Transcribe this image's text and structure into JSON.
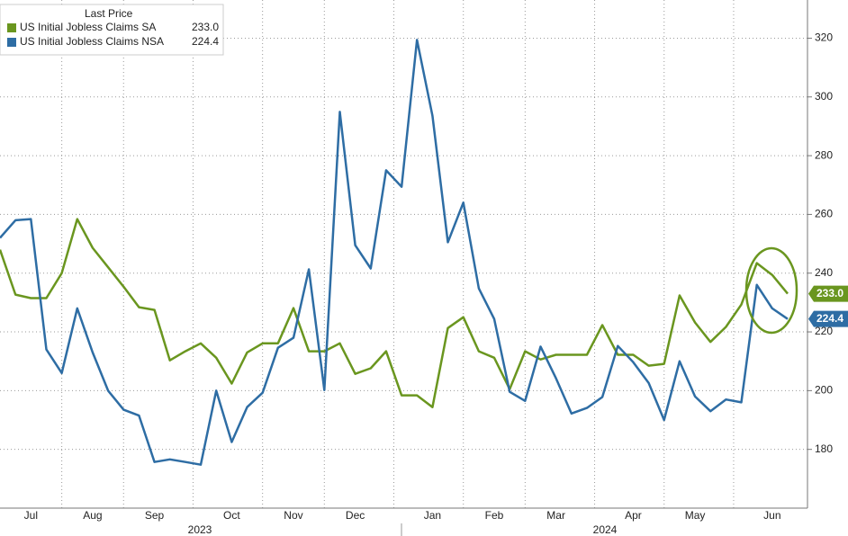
{
  "chart_data": {
    "type": "line",
    "legend_title": "Last Price",
    "categories": [
      null,
      null,
      "Jul",
      null,
      null,
      null,
      "Aug",
      null,
      null,
      null,
      "Sep",
      null,
      null,
      null,
      null,
      "Oct",
      null,
      null,
      null,
      "Nov",
      null,
      null,
      null,
      "Dec",
      null,
      null,
      null,
      null,
      "Jan",
      null,
      null,
      null,
      "Feb",
      null,
      null,
      null,
      "Mar",
      null,
      null,
      null,
      null,
      "Apr",
      null,
      null,
      null,
      "May",
      null,
      null,
      null,
      null,
      "Jun",
      null
    ],
    "x_group_labels": [
      "2023",
      "2024"
    ],
    "series": [
      {
        "name": "US Initial Jobless Claims SA",
        "color": "#6a961f",
        "last_label": "233.0",
        "values": [
          248,
          232.7,
          231.5,
          231.5,
          240,
          258.4,
          248.6,
          242,
          235.4,
          228.4,
          227.5,
          210.3,
          213.4,
          216.1,
          211.2,
          202.4,
          213,
          216.1,
          216.1,
          228.1,
          213.4,
          213.4,
          216.1,
          205.7,
          207.6,
          213.4,
          198.4,
          198.4,
          194.4,
          221.3,
          225,
          213.4,
          211.2,
          200.5,
          213.4,
          210.6,
          212.2,
          212.2,
          212.2,
          222.3,
          212.2,
          212.2,
          208.5,
          209.1,
          232.4,
          223.2,
          216.6,
          221.7,
          229.3,
          243.4,
          239.4,
          233.0
        ]
      },
      {
        "name": "US Initial Jobless Claims NSA",
        "color": "#2e6da4",
        "last_label": "224.4",
        "values": [
          252,
          258,
          258.4,
          214,
          206,
          228,
          213,
          200,
          193.5,
          191.5,
          175.7,
          176.6,
          175.7,
          174.8,
          200,
          182.5,
          194.4,
          199.3,
          214.6,
          218,
          241.3,
          200.2,
          294.9,
          249.5,
          241.6,
          275,
          269.4,
          319.4,
          293.6,
          250.5,
          264,
          234.8,
          224.4,
          199.6,
          196.5,
          215,
          204.2,
          192.2,
          194.1,
          197.8,
          215.2,
          209.7,
          202.6,
          190,
          210,
          198,
          193,
          197,
          196,
          236,
          228,
          224.4
        ]
      }
    ],
    "ylim": [
      160,
      333
    ],
    "yticks": [
      180,
      200,
      220,
      240,
      260,
      280,
      300,
      320
    ],
    "grid": true,
    "legend": "top-left"
  }
}
